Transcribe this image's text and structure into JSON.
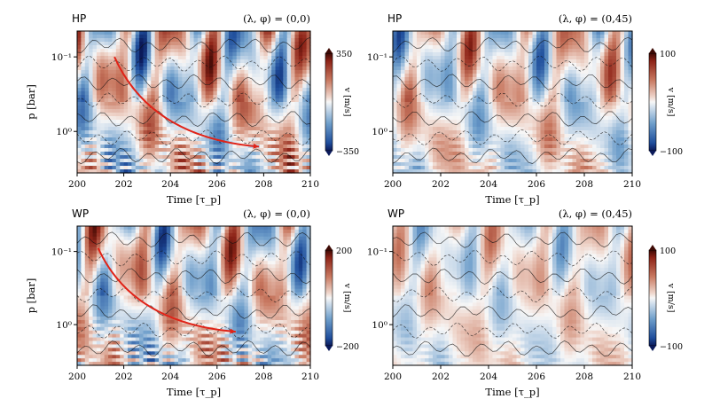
{
  "colors": {
    "negative": "#2a5aa8",
    "zero": "#f7f7f7",
    "positive": "#a83226",
    "trend_arrow": "#e02318"
  },
  "chart_data": [
    {
      "type": "heatmap",
      "tag": "HP",
      "location_label": "(λ, φ) = (0,0)",
      "xlabel": "Time [τ_p]",
      "ylabel": "p [bar]",
      "xlim": [
        200,
        210
      ],
      "xticks": [
        "200",
        "202",
        "204",
        "206",
        "208",
        "210"
      ],
      "yscale": "log",
      "ylim": [
        0.045,
        3.6
      ],
      "yticks": [
        {
          "value": 0.1,
          "label": "10⁻¹"
        },
        {
          "value": 1,
          "label": "10⁰"
        }
      ],
      "colorbar": {
        "label": "v [m/s]",
        "min": -350,
        "max": 350,
        "ticks": [
          "350",
          "−350"
        ]
      },
      "arrow": {
        "from": [
          201.6,
          0.1
        ],
        "to": [
          207.8,
          1.6
        ]
      },
      "field": {
        "amp": 1.0,
        "osc": 1.0,
        "seed": 1
      }
    },
    {
      "type": "heatmap",
      "tag": "HP",
      "location_label": "(λ, φ) = (0,45)",
      "xlabel": "Time [τ_p]",
      "ylabel": "",
      "xlim": [
        200,
        210
      ],
      "xticks": [
        "200",
        "202",
        "204",
        "206",
        "208",
        "210"
      ],
      "yscale": "log",
      "ylim": [
        0.045,
        3.6
      ],
      "yticks": [
        {
          "value": 0.1,
          "label": "10⁻¹"
        },
        {
          "value": 1,
          "label": "10⁰"
        }
      ],
      "colorbar": {
        "label": "v [m/s]",
        "min": -100,
        "max": 100,
        "ticks": [
          "100",
          "−100"
        ]
      },
      "arrow": null,
      "field": {
        "amp": 0.8,
        "osc": 0.45,
        "seed": 2
      }
    },
    {
      "type": "heatmap",
      "tag": "WP",
      "location_label": "(λ, φ) = (0,0)",
      "xlabel": "Time [τ_p]",
      "ylabel": "p [bar]",
      "xlim": [
        200,
        210
      ],
      "xticks": [
        "200",
        "202",
        "204",
        "206",
        "208",
        "210"
      ],
      "yscale": "log",
      "ylim": [
        0.045,
        3.6
      ],
      "yticks": [
        {
          "value": 0.1,
          "label": "10⁻¹"
        },
        {
          "value": 1,
          "label": "10⁰"
        }
      ],
      "colorbar": {
        "label": "v [m/s]",
        "min": -200,
        "max": 200,
        "ticks": [
          "200",
          "−200"
        ]
      },
      "arrow": {
        "from": [
          200.9,
          0.09
        ],
        "to": [
          206.8,
          1.25
        ]
      },
      "field": {
        "amp": 0.9,
        "osc": 1.2,
        "seed": 3
      }
    },
    {
      "type": "heatmap",
      "tag": "WP",
      "location_label": "(λ, φ) = (0,45)",
      "xlabel": "Time [τ_p]",
      "ylabel": "",
      "xlim": [
        200,
        210
      ],
      "xticks": [
        "200",
        "202",
        "204",
        "206",
        "208",
        "210"
      ],
      "yscale": "log",
      "ylim": [
        0.045,
        3.6
      ],
      "yticks": [
        {
          "value": 0.1,
          "label": "10⁻¹"
        },
        {
          "value": 1,
          "label": "10⁰"
        }
      ],
      "colorbar": {
        "label": "v [m/s]",
        "min": -100,
        "max": 100,
        "ticks": [
          "100",
          "−100"
        ]
      },
      "arrow": null,
      "field": {
        "amp": 0.55,
        "osc": 0.35,
        "seed": 4
      }
    }
  ]
}
